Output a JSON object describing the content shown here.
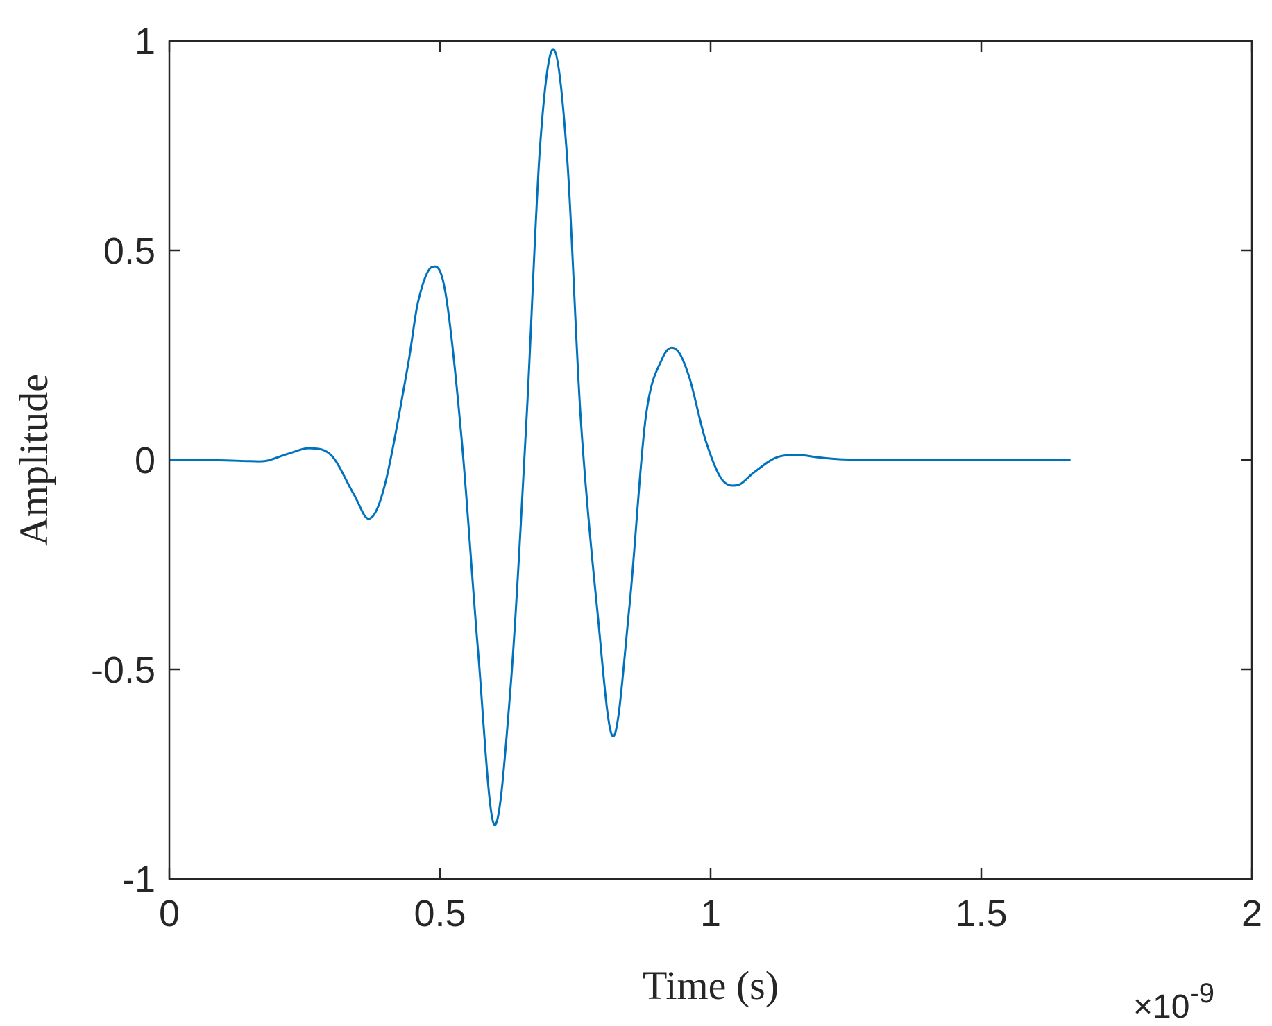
{
  "chart_data": {
    "type": "line",
    "title": "",
    "xlabel": "Time (s)",
    "ylabel": "Amplitude",
    "x_exponent_label": {
      "times": "×10",
      "power": "-9"
    },
    "xlim": [
      0,
      2
    ],
    "ylim": [
      -1,
      1
    ],
    "xticks": [
      0,
      0.5,
      1,
      1.5,
      2
    ],
    "xtick_labels": [
      "0",
      "0.5",
      "1",
      "1.5",
      "2"
    ],
    "yticks": [
      -1,
      -0.5,
      0,
      0.5,
      1
    ],
    "ytick_labels": [
      "-1",
      "-0.5",
      "0",
      "0.5",
      "1"
    ],
    "x_unit_scale": 1e-09,
    "grid": false,
    "box": true,
    "line_color": "#0072BD",
    "series": [
      {
        "x": [
          0,
          0.05,
          0.1,
          0.15,
          0.18,
          0.22,
          0.26,
          0.3,
          0.34,
          0.37,
          0.4,
          0.44,
          0.46,
          0.485,
          0.51,
          0.54,
          0.57,
          0.6,
          0.63,
          0.66,
          0.685,
          0.71,
          0.735,
          0.76,
          0.79,
          0.82,
          0.85,
          0.88,
          0.91,
          0.935,
          0.96,
          0.99,
          1.02,
          1.05,
          1.08,
          1.12,
          1.16,
          1.2,
          1.25,
          1.35,
          1.5,
          1.665
        ],
        "y": [
          0,
          0,
          -0.001,
          -0.003,
          -0.002,
          0.015,
          0.028,
          0.01,
          -0.08,
          -0.14,
          -0.05,
          0.22,
          0.38,
          0.46,
          0.4,
          0.05,
          -0.45,
          -0.87,
          -0.55,
          0.1,
          0.75,
          0.98,
          0.72,
          0.1,
          -0.35,
          -0.66,
          -0.35,
          0.1,
          0.24,
          0.265,
          0.2,
          0.05,
          -0.045,
          -0.06,
          -0.03,
          0.005,
          0.012,
          0.006,
          0.001,
          0,
          0,
          0
        ]
      }
    ]
  }
}
